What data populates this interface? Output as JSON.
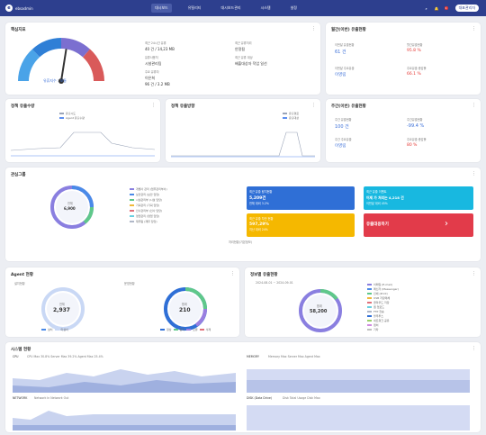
{
  "nav": {
    "brand": "ebsadmin",
    "items": [
      "대시보드",
      "유틸리티",
      "대시보드관리",
      "시스템",
      "설정"
    ],
    "user": "대표관리자",
    "badge": "1"
  },
  "gauge": {
    "title": "핵심지표",
    "label": "유휴지수 : 보통",
    "value": 0.55,
    "rows": [
      {
        "k": "최근 24시간 유휴",
        "v": "40 건 / 14,23 MB"
      },
      {
        "k": "유휴사용처",
        "v": "시설관리팀"
      },
      {
        "k": "주요 유휴자",
        "v": "이은희"
      },
      {
        "k": "최근 파일",
        "v": "96 건 / 3.2 MB"
      },
      {
        "k": "최근 유휴처리",
        "v": "안정됨"
      },
      {
        "k": "최근 유휴 대상",
        "v": "배출대상자 작업 일선"
      }
    ]
  },
  "monthly": {
    "title": "월간(이번) 유출현황",
    "a_label": "이번달 유출현황",
    "a_value": "61 건",
    "b_label": "월간유출현황",
    "b_value": "95.8 %",
    "c_label": "이번달 주요유출",
    "c_value": "이영림",
    "d_label": "주요유출 증감률",
    "d_value": "66.1 %"
  },
  "weekly": {
    "title": "주간(이번) 유출현황",
    "a_label": "주간 유출현황",
    "a_value": "100 건",
    "b_label": "주간유출현황",
    "b_value": "-99.4 %",
    "c_label": "주간 주요유출",
    "c_value": "이영림",
    "d_label": "주요유출 증감률",
    "d_value": "80 %"
  },
  "chart1": {
    "title": "정책 유출수량",
    "legend": [
      "유출시도",
      "Agent 유출수량"
    ],
    "colors": [
      "#9aa4b8",
      "#5c8ef0"
    ]
  },
  "chart2": {
    "title": "정책 유출방향",
    "legend": [
      "유출경로",
      "유출대상"
    ],
    "colors": [
      "#9aa4b8",
      "#5c8ef0"
    ]
  },
  "category": {
    "title": "관심그룹",
    "center_label": "전체",
    "center_value": "6,900",
    "legend": [
      "개별사 관리 (업무관리부서)",
      "보안관리 (보안 담당)",
      "시설관리부 (시설 담당)",
      "기획관리 (기획 담당)",
      "인사관리부 (인사 담당)",
      "영업관리 (영업 담당)",
      "재무팀 (재무 담당)"
    ],
    "tiles": [
      {
        "k": "최근 유출 탐지현황",
        "v": "5,209건",
        "s": "전체 대비 3.2%"
      },
      {
        "k": "최근 유출 이벤트",
        "v": "어제 가 처리는 4,218 건",
        "s": "이번달 대비 45%"
      },
      {
        "k": "최근 유출 차단 현황",
        "v": "597,29%",
        "s": "지난 대비 24%"
      },
      {
        "k": "관리대상",
        "v": "유출대응하기"
      }
    ],
    "tiles_label": "처리현황(기본정보)"
  },
  "agent": {
    "title": "Agent 현황",
    "sub1": "설치현황",
    "sub2": "운영현황",
    "v1_label": "전체",
    "v1": "2,937",
    "v2_label": "합계",
    "v2": "210",
    "l1": [
      "설치",
      "미설치"
    ],
    "l2": [
      "정상",
      "중지",
      "오류",
      "삭제"
    ]
  },
  "share": {
    "title": "정보별 유출현황",
    "sub": "2024-08-01 ~ 2024-09-01",
    "center_label": "합계",
    "center_value": "58,200",
    "legend": [
      "이메일 (E-mail)",
      "메신저 (Messenger)",
      "인쇄 (Print)",
      "USB 저장매체",
      "클라우드 저장",
      "웹 업로드",
      "FTP 전송",
      "블루투스",
      "네트워크 공유",
      "캡처",
      "기타"
    ]
  },
  "sys": {
    "title": "시스템 현황",
    "cpu": "CPU",
    "cpu_legend": "CPU Max 30.8%  Server Max 39.2%  Agent Max 25.4%",
    "mem": "MEMORY",
    "mem_legend": "Memory Max  Server Max  Agent Max",
    "net": "NETWORK",
    "net_legend": "Network In  Network Out",
    "disk": "DISK (Data Drive)",
    "disk_legend": "Disk Total Usage  Disk Max"
  }
}
